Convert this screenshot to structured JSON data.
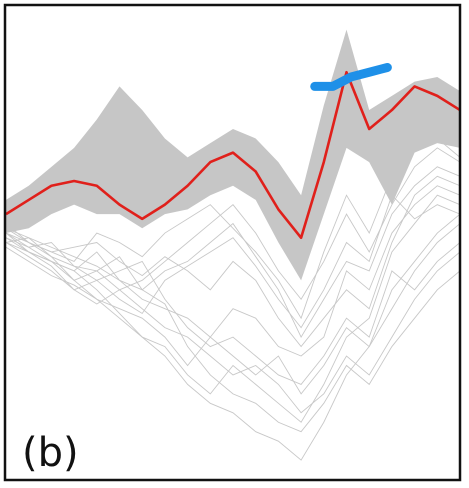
{
  "panel_label": "(b)",
  "colors": {
    "background_series": "#c8c8c8",
    "band": "#c6c6c6",
    "mean_line": "#e0201b",
    "highlight": "#1e90e8",
    "frame": "#111111"
  },
  "chart_data": {
    "type": "line",
    "title": "",
    "xlabel": "",
    "ylabel": "",
    "xlim": [
      0,
      20
    ],
    "ylim": [
      0,
      100
    ],
    "grid": false,
    "legend": "none",
    "band": {
      "x": [
        0,
        1,
        2,
        3,
        4,
        5,
        6,
        7,
        8,
        9,
        10,
        11,
        12,
        13,
        14,
        15,
        16,
        17,
        18,
        19,
        20
      ],
      "upper": [
        59,
        62,
        66,
        70,
        76,
        83,
        78,
        72,
        68,
        71,
        74,
        72,
        67,
        60,
        79,
        95,
        78,
        81,
        84,
        85,
        82
      ],
      "lower": [
        52,
        53,
        56,
        58,
        56,
        56,
        53,
        56,
        57,
        60,
        62,
        59,
        50,
        42,
        56,
        70,
        67,
        58,
        69,
        71,
        70
      ]
    },
    "mean_line": {
      "x": [
        0,
        1,
        2,
        3,
        4,
        5,
        6,
        7,
        8,
        9,
        10,
        11,
        12,
        13,
        14,
        15,
        16,
        17,
        18,
        19,
        20
      ],
      "y": [
        56,
        59,
        62,
        63,
        62,
        58,
        55,
        58,
        62,
        67,
        69,
        65,
        57,
        51,
        67,
        86,
        74,
        78,
        83,
        81,
        78
      ]
    },
    "highlight_segment": {
      "x": [
        13.6,
        14.4,
        15.2,
        16.0,
        16.8
      ],
      "y": [
        83,
        83,
        85,
        86,
        87
      ]
    },
    "background_series": [
      {
        "values": [
          54,
          50,
          48,
          46,
          52,
          50,
          47,
          52,
          55,
          58,
          53,
          48,
          42,
          34,
          48,
          60,
          52,
          64,
          70,
          72,
          68
        ]
      },
      {
        "values": [
          52,
          49,
          50,
          45,
          44,
          47,
          40,
          44,
          46,
          50,
          54,
          47,
          40,
          30,
          38,
          46,
          44,
          56,
          62,
          66,
          64
        ]
      },
      {
        "values": [
          50,
          47,
          44,
          40,
          42,
          38,
          35,
          42,
          45,
          48,
          51,
          45,
          38,
          32,
          40,
          50,
          46,
          60,
          55,
          58,
          56
        ]
      },
      {
        "values": [
          53,
          51,
          47,
          42,
          38,
          36,
          34,
          30,
          24,
          30,
          36,
          34,
          28,
          26,
          30,
          44,
          40,
          52,
          58,
          62,
          60
        ]
      },
      {
        "values": [
          51,
          48,
          46,
          44,
          40,
          35,
          30,
          28,
          22,
          18,
          24,
          20,
          16,
          12,
          20,
          30,
          34,
          48,
          54,
          60,
          58
        ]
      },
      {
        "values": [
          49,
          46,
          43,
          41,
          38,
          34,
          30,
          26,
          20,
          16,
          14,
          10,
          8,
          4,
          12,
          22,
          28,
          40,
          46,
          52,
          56
        ]
      },
      {
        "values": [
          52,
          50,
          48,
          49,
          50,
          46,
          43,
          47,
          44,
          40,
          46,
          42,
          34,
          28,
          34,
          40,
          36,
          50,
          60,
          64,
          62
        ]
      },
      {
        "values": [
          50,
          48,
          46,
          42,
          44,
          40,
          42,
          46,
          50,
          54,
          58,
          52,
          44,
          38,
          46,
          56,
          48,
          58,
          66,
          70,
          67
        ]
      },
      {
        "values": [
          53,
          50,
          47,
          45,
          42,
          44,
          46,
          38,
          32,
          28,
          30,
          26,
          22,
          20,
          26,
          34,
          30,
          44,
          40,
          46,
          50
        ]
      },
      {
        "values": [
          51,
          49,
          46,
          44,
          48,
          42,
          38,
          36,
          34,
          30,
          26,
          22,
          26,
          18,
          24,
          32,
          28,
          36,
          44,
          50,
          54
        ]
      },
      {
        "values": [
          52,
          48,
          45,
          40,
          37,
          40,
          36,
          32,
          30,
          26,
          22,
          24,
          20,
          14,
          18,
          26,
          22,
          30,
          38,
          44,
          48
        ]
      },
      {
        "values": [
          50,
          51,
          49,
          47,
          45,
          42,
          40,
          37,
          28,
          22,
          18,
          16,
          12,
          10,
          16,
          24,
          20,
          28,
          34,
          40,
          44
        ]
      }
    ]
  }
}
